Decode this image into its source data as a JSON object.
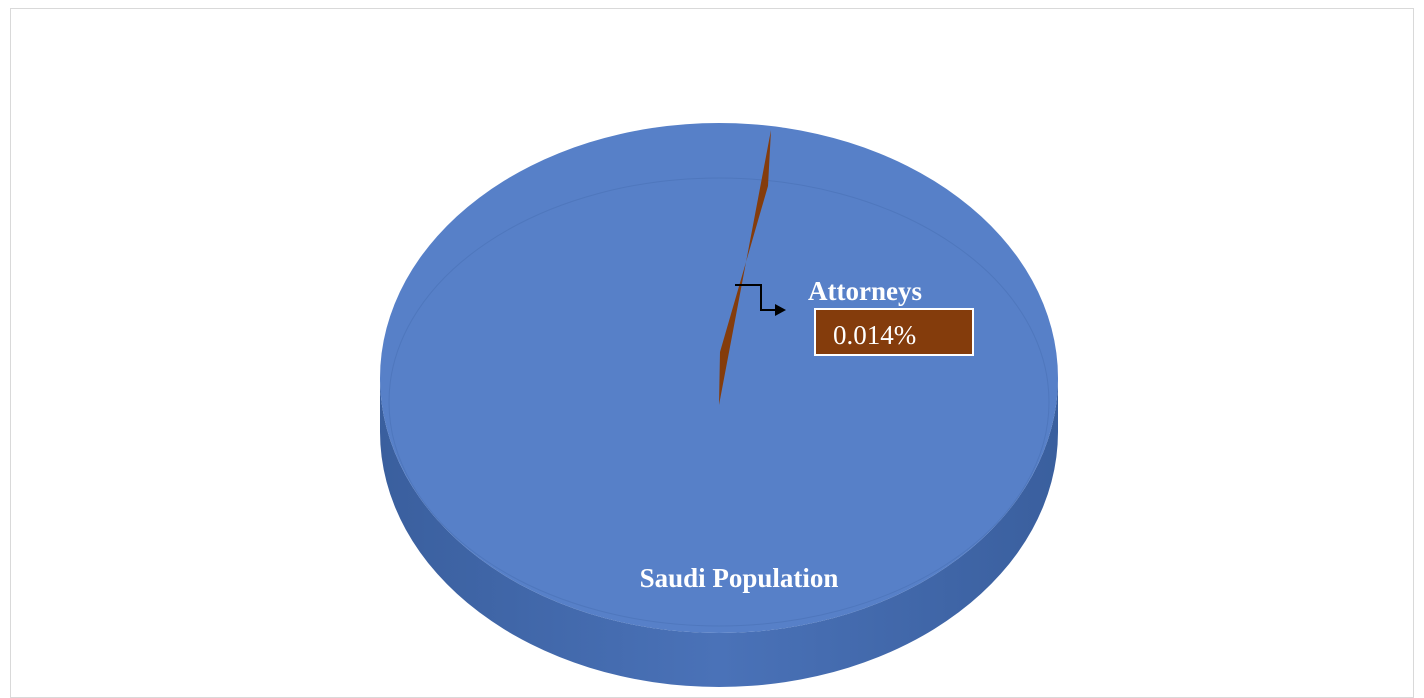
{
  "chart_data": {
    "type": "pie",
    "style": "3d",
    "slices": [
      {
        "label": "Saudi Population",
        "value": 99.986,
        "value_label": "",
        "color": "#5780C8"
      },
      {
        "label": "Attorneys",
        "value": 0.014,
        "value_label": "0.014%",
        "color": "#843C0C"
      }
    ],
    "legend": "none"
  }
}
